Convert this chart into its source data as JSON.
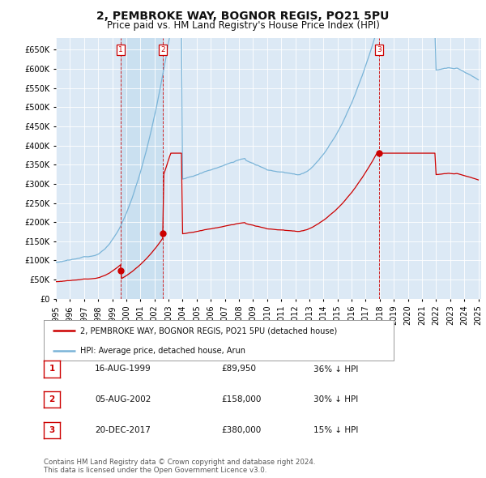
{
  "title": "2, PEMBROKE WAY, BOGNOR REGIS, PO21 5PU",
  "subtitle": "Price paid vs. HM Land Registry's House Price Index (HPI)",
  "ylim": [
    0,
    680000
  ],
  "yticks": [
    0,
    50000,
    100000,
    150000,
    200000,
    250000,
    300000,
    350000,
    400000,
    450000,
    500000,
    550000,
    600000,
    650000
  ],
  "background_color": "#ffffff",
  "plot_bg_color": "#dce9f5",
  "grid_color": "#ffffff",
  "hpi_color": "#7ab4d8",
  "price_color": "#cc0000",
  "shade_color": "#d0e4f5",
  "trans_dates": [
    1999.62,
    2002.59,
    2017.97
  ],
  "trans_prices": [
    89950,
    158000,
    380000
  ],
  "transactions": [
    {
      "label": "1",
      "date_num": 1999.62,
      "price": 89950
    },
    {
      "label": "2",
      "date_num": 2002.59,
      "price": 158000
    },
    {
      "label": "3",
      "date_num": 2017.97,
      "price": 380000
    }
  ],
  "transaction_labels": [
    {
      "num": 1,
      "date": "16-AUG-1999",
      "price": "£89,950",
      "pct": "36% ↓ HPI"
    },
    {
      "num": 2,
      "date": "05-AUG-2002",
      "price": "£158,000",
      "pct": "30% ↓ HPI"
    },
    {
      "num": 3,
      "date": "20-DEC-2017",
      "price": "£380,000",
      "pct": "15% ↓ HPI"
    }
  ],
  "legend_entries": [
    "2, PEMBROKE WAY, BOGNOR REGIS, PO21 5PU (detached house)",
    "HPI: Average price, detached house, Arun"
  ],
  "footnote": "Contains HM Land Registry data © Crown copyright and database right 2024.\nThis data is licensed under the Open Government Licence v3.0.",
  "title_fontsize": 10,
  "subtitle_fontsize": 8.5,
  "tick_fontsize": 7,
  "xlim_left": 1995.3,
  "xlim_right": 2025.2
}
